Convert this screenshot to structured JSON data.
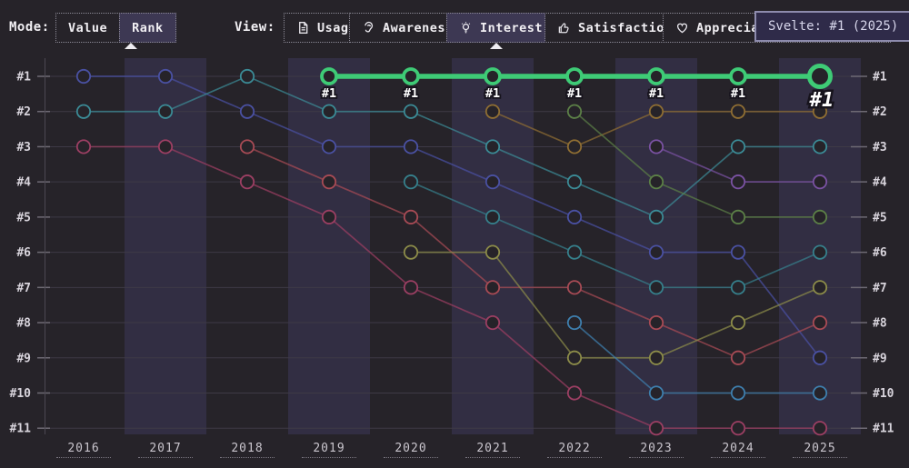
{
  "header": {
    "mode_label": "Mode:",
    "mode_options": [
      {
        "label": "Value",
        "selected": false
      },
      {
        "label": "Rank",
        "selected": true
      }
    ],
    "view_label": "View:",
    "view_options": [
      {
        "label": "Usage",
        "icon": "document-icon",
        "selected": false
      },
      {
        "label": "Awareness",
        "icon": "ear-icon",
        "selected": false
      },
      {
        "label": "Interest",
        "icon": "lightbulb-icon",
        "selected": true
      },
      {
        "label": "Satisfaction",
        "icon": "thumbs-up-icon",
        "selected": false
      },
      {
        "label": "Appreciation",
        "icon": "heart-icon",
        "selected": false
      }
    ]
  },
  "tooltip": {
    "text": "Svelte: #1 (2025)"
  },
  "colors": {
    "background": "#262329",
    "band": "#322e43",
    "gridline": "#3e3a46",
    "axis": "#4c4852",
    "tick": "#6e6a74",
    "highlight_green": "#3ecb76"
  },
  "chart_data": {
    "type": "bump",
    "title": "",
    "x_categories": [
      "2016",
      "2017",
      "2018",
      "2019",
      "2020",
      "2021",
      "2022",
      "2023",
      "2024",
      "2025"
    ],
    "rank_labels": [
      "#1",
      "#2",
      "#3",
      "#4",
      "#5",
      "#6",
      "#7",
      "#8",
      "#9",
      "#10",
      "#11"
    ],
    "legend": "none",
    "grid": "horizontal-faint, alternate-year shaded bands",
    "hovered_series": "Svelte",
    "series": [
      {
        "id": "indigo",
        "color": "#4a51a3",
        "highlight": false,
        "points": [
          {
            "year": "2016",
            "rank": 1
          },
          {
            "year": "2017",
            "rank": 1
          },
          {
            "year": "2018",
            "rank": 2
          },
          {
            "year": "2019",
            "rank": 3
          },
          {
            "year": "2020",
            "rank": 3
          },
          {
            "year": "2021",
            "rank": 4
          },
          {
            "year": "2022",
            "rank": 5
          },
          {
            "year": "2023",
            "rank": 6
          },
          {
            "year": "2024",
            "rank": 6
          },
          {
            "year": "2025",
            "rank": 9
          }
        ]
      },
      {
        "id": "teal",
        "color": "#3b8b96",
        "highlight": false,
        "points": [
          {
            "year": "2016",
            "rank": 2
          },
          {
            "year": "2017",
            "rank": 2
          },
          {
            "year": "2018",
            "rank": 1
          },
          {
            "year": "2019",
            "rank": 2
          },
          {
            "year": "2020",
            "rank": 2
          },
          {
            "year": "2021",
            "rank": 3
          },
          {
            "year": "2022",
            "rank": 4
          },
          {
            "year": "2023",
            "rank": 5
          },
          {
            "year": "2024",
            "rank": 3
          },
          {
            "year": "2025",
            "rank": 3
          }
        ]
      },
      {
        "id": "magenta",
        "color": "#9c3f63",
        "highlight": false,
        "points": [
          {
            "year": "2016",
            "rank": 3
          },
          {
            "year": "2017",
            "rank": 3
          },
          {
            "year": "2018",
            "rank": 4
          },
          {
            "year": "2019",
            "rank": 5
          },
          {
            "year": "2020",
            "rank": 7
          },
          {
            "year": "2021",
            "rank": 8
          },
          {
            "year": "2022",
            "rank": 10
          },
          {
            "year": "2023",
            "rank": 11
          },
          {
            "year": "2024",
            "rank": 11
          },
          {
            "year": "2025",
            "rank": 11
          }
        ]
      },
      {
        "id": "rose",
        "color": "#a84b55",
        "highlight": false,
        "points": [
          {
            "year": "2018",
            "rank": 3
          },
          {
            "year": "2019",
            "rank": 4
          },
          {
            "year": "2020",
            "rank": 5
          },
          {
            "year": "2021",
            "rank": 7
          },
          {
            "year": "2022",
            "rank": 7
          },
          {
            "year": "2023",
            "rank": 8
          },
          {
            "year": "2024",
            "rank": 9
          },
          {
            "year": "2025",
            "rank": 8
          }
        ]
      },
      {
        "id": "teal-2",
        "color": "#36808c",
        "highlight": false,
        "points": [
          {
            "year": "2020",
            "rank": 4
          },
          {
            "year": "2021",
            "rank": 5
          },
          {
            "year": "2022",
            "rank": 6
          },
          {
            "year": "2023",
            "rank": 7
          },
          {
            "year": "2024",
            "rank": 7
          },
          {
            "year": "2025",
            "rank": 6
          }
        ]
      },
      {
        "id": "olive",
        "color": "#8c8c49",
        "highlight": false,
        "points": [
          {
            "year": "2020",
            "rank": 6
          },
          {
            "year": "2021",
            "rank": 6
          },
          {
            "year": "2022",
            "rank": 9
          },
          {
            "year": "2023",
            "rank": 9
          },
          {
            "year": "2024",
            "rank": 8
          },
          {
            "year": "2025",
            "rank": 7
          }
        ]
      },
      {
        "id": "gold",
        "color": "#8f6e33",
        "highlight": false,
        "points": [
          {
            "year": "2021",
            "rank": 2
          },
          {
            "year": "2022",
            "rank": 3
          },
          {
            "year": "2023",
            "rank": 2
          },
          {
            "year": "2024",
            "rank": 2
          },
          {
            "year": "2025",
            "rank": 2
          }
        ]
      },
      {
        "id": "green-dark",
        "color": "#5c8047",
        "highlight": false,
        "points": [
          {
            "year": "2022",
            "rank": 2
          },
          {
            "year": "2023",
            "rank": 4
          },
          {
            "year": "2024",
            "rank": 5
          },
          {
            "year": "2025",
            "rank": 5
          }
        ]
      },
      {
        "id": "blue-light",
        "color": "#3e7fae",
        "highlight": false,
        "points": [
          {
            "year": "2022",
            "rank": 8
          },
          {
            "year": "2023",
            "rank": 10
          },
          {
            "year": "2024",
            "rank": 10
          },
          {
            "year": "2025",
            "rank": 10
          }
        ]
      },
      {
        "id": "purple",
        "color": "#7a52a3",
        "highlight": false,
        "points": [
          {
            "year": "2023",
            "rank": 3
          },
          {
            "year": "2024",
            "rank": 4
          },
          {
            "year": "2025",
            "rank": 4
          }
        ]
      },
      {
        "id": "Svelte",
        "color": "#3ecb76",
        "highlight": true,
        "points": [
          {
            "year": "2019",
            "rank": 1
          },
          {
            "year": "2020",
            "rank": 1
          },
          {
            "year": "2021",
            "rank": 1
          },
          {
            "year": "2022",
            "rank": 1
          },
          {
            "year": "2023",
            "rank": 1
          },
          {
            "year": "2024",
            "rank": 1
          },
          {
            "year": "2025",
            "rank": 1
          }
        ],
        "point_labels": [
          {
            "year": "2019",
            "text": "#1"
          },
          {
            "year": "2020",
            "text": "#1"
          },
          {
            "year": "2021",
            "text": "#1"
          },
          {
            "year": "2022",
            "text": "#1"
          },
          {
            "year": "2023",
            "text": "#1"
          },
          {
            "year": "2024",
            "text": "#1"
          },
          {
            "year": "2025",
            "text": "#1",
            "emphasis": true
          }
        ]
      }
    ]
  }
}
